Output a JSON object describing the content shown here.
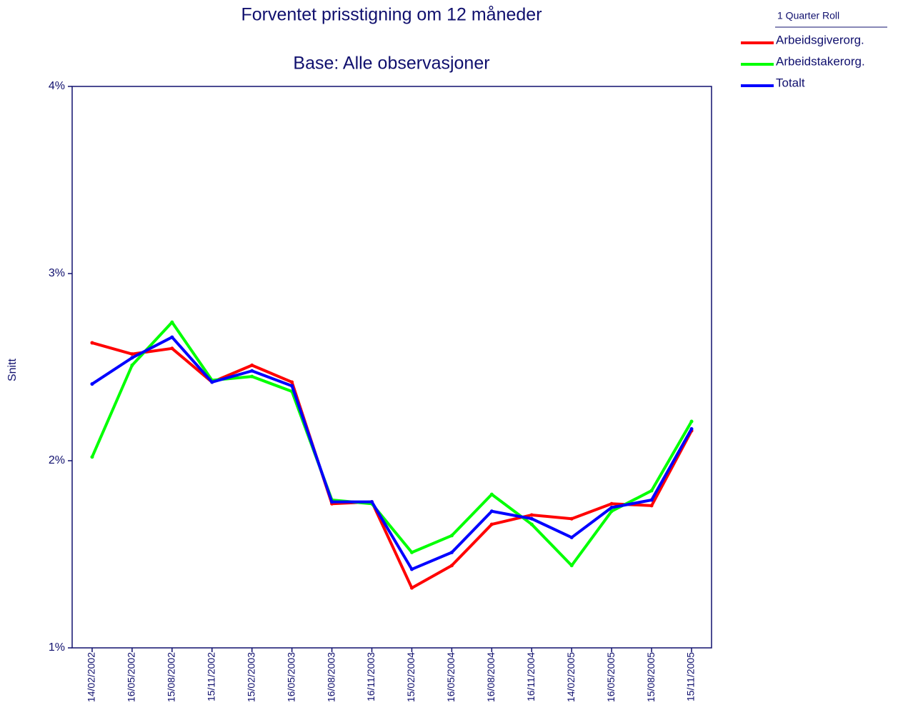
{
  "chart_data": {
    "type": "line",
    "title": "Forventet prisstigning om 12 måneder",
    "subtitle": "Base: Alle observasjoner",
    "ylabel": "Snitt",
    "legend_title": "1 Quarter Roll",
    "legend": "right",
    "categories": [
      "14/02/2002",
      "16/05/2002",
      "15/08/2002",
      "15/11/2002",
      "15/02/2003",
      "16/05/2003",
      "16/08/2003",
      "16/11/2003",
      "15/02/2004",
      "16/05/2004",
      "16/08/2004",
      "16/11/2004",
      "14/02/2005",
      "16/05/2005",
      "15/08/2005",
      "15/11/2005"
    ],
    "series": [
      {
        "name": "Arbeidsgiverorg.",
        "color": "#ff0000",
        "values": [
          2.63,
          2.57,
          2.6,
          2.42,
          2.51,
          2.42,
          1.77,
          1.78,
          1.32,
          1.44,
          1.66,
          1.71,
          1.69,
          1.77,
          1.76,
          2.16
        ]
      },
      {
        "name": "Arbeidstakerorg.",
        "color": "#00ff00",
        "values": [
          2.02,
          2.51,
          2.74,
          2.43,
          2.45,
          2.37,
          1.79,
          1.77,
          1.51,
          1.6,
          1.82,
          1.66,
          1.44,
          1.73,
          1.84,
          2.21
        ]
      },
      {
        "name": "Totalt",
        "color": "#0000ff",
        "values": [
          2.41,
          2.55,
          2.66,
          2.42,
          2.48,
          2.4,
          1.78,
          1.78,
          1.42,
          1.51,
          1.73,
          1.69,
          1.59,
          1.75,
          1.79,
          2.17
        ]
      }
    ],
    "ylim": [
      1,
      4
    ],
    "yticks": [
      {
        "value": 1,
        "label": "1%"
      },
      {
        "value": 2,
        "label": "2%"
      },
      {
        "value": 3,
        "label": "3%"
      },
      {
        "value": 4,
        "label": "4%"
      }
    ]
  }
}
